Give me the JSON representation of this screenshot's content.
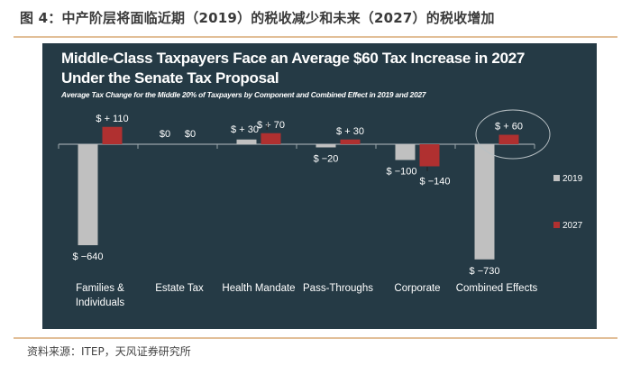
{
  "figure": {
    "title": "图 4：中产阶层将面临近期（2019）的税收减少和未来（2027）的税收增加",
    "source": "资料来源：ITEP，天风证券研究所"
  },
  "colors": {
    "panel_bg": "#253a45",
    "series_2019": "#c0c0c0",
    "series_2027": "#b03030",
    "axis": "#9aa5ab",
    "rule": "#e2bf98"
  },
  "chart_data": {
    "type": "bar",
    "title": "Middle-Class Taxpayers Face an Average $60 Tax Increase in 2027 Under the Senate Tax Proposal",
    "subtitle": "Average Tax Change for the Middle 20% of Taxpayers by Component and Combined Effect in 2019 and 2027",
    "xlabel": "",
    "ylabel": "",
    "ylim": [
      -730,
      110
    ],
    "grid": false,
    "legend_position": "right",
    "categories": [
      "Families & Individuals",
      "Estate Tax",
      "Health Mandate",
      "Pass-Throughs",
      "Corporate",
      "Combined Effects"
    ],
    "category_lines": [
      [
        "Families &",
        "Individuals"
      ],
      [
        "Estate Tax"
      ],
      [
        "Health Mandate"
      ],
      [
        "Pass-Throughs"
      ],
      [
        "Corporate"
      ],
      [
        "Combined Effects"
      ]
    ],
    "series": [
      {
        "name": "2019",
        "values": [
          -640,
          0,
          30,
          -20,
          -100,
          -730
        ],
        "labels": [
          "$ −640",
          "$0",
          "$ + 30",
          "$ −20",
          "$ −100",
          "$ −730"
        ]
      },
      {
        "name": "2027",
        "values": [
          110,
          0,
          70,
          30,
          -140,
          60
        ],
        "labels": [
          "$ + 110",
          "$0",
          "$ + 70",
          "$ + 30",
          "$ −140",
          "$ + 60"
        ]
      }
    ],
    "annotations": [
      {
        "type": "ellipse-highlight",
        "target": "Combined Effects 2027",
        "text": "$ + 60"
      }
    ]
  }
}
